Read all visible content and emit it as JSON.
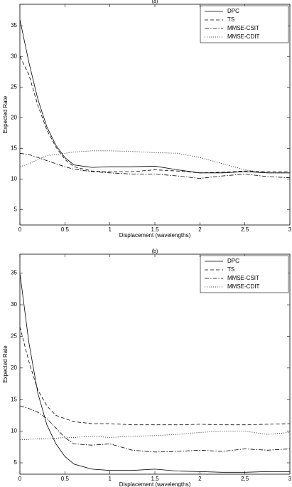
{
  "chart_data": [
    {
      "type": "line",
      "title": "(a)",
      "x_label": "Displacement (wavelengths)",
      "y_label": "Expected Rate",
      "x": [
        0,
        0.1,
        0.2,
        0.3,
        0.4,
        0.5,
        0.6,
        0.8,
        1,
        1.25,
        1.5,
        1.75,
        2,
        2.25,
        2.5,
        2.75,
        3
      ],
      "series": [
        {
          "name": "DPC",
          "color": "#000000",
          "dash": "solid",
          "values": [
            36,
            29,
            23,
            18.5,
            15.5,
            13.5,
            12.3,
            11.9,
            12,
            12,
            12.1,
            11.5,
            11,
            11,
            11.2,
            11,
            11
          ]
        },
        {
          "name": "TS",
          "color": "#000000",
          "dash": "dashed",
          "values": [
            30,
            27,
            22,
            18,
            15.2,
            13.2,
            12,
            11.3,
            11.2,
            11.2,
            11.5,
            11.3,
            11,
            11.1,
            11.3,
            11.2,
            11.2
          ]
        },
        {
          "name": "MMSE-CSIT",
          "color": "#000000",
          "dash": "dashdot",
          "values": [
            14.2,
            14,
            13.5,
            13,
            12.5,
            12,
            11.6,
            11.2,
            11,
            10.8,
            10.8,
            10.5,
            10.1,
            10.5,
            10.8,
            10.4,
            10.2
          ]
        },
        {
          "name": "MMSE-CDIT",
          "color": "#000000",
          "dash": "dotted",
          "values": [
            12,
            12.5,
            13.2,
            13.8,
            14,
            14.2,
            14.4,
            14.6,
            14.6,
            14.5,
            14.3,
            14.2,
            13.5,
            12.5,
            11.5,
            11,
            11
          ]
        }
      ],
      "xlim": [
        0,
        3
      ],
      "ylim": [
        2.5,
        38.5
      ],
      "xticks": [
        0,
        0.5,
        1,
        1.5,
        2,
        2.5,
        3
      ],
      "yticks": [
        5,
        10,
        15,
        20,
        25,
        30,
        35
      ],
      "legend": "upper right"
    },
    {
      "type": "line",
      "title": "(b)",
      "x_label": "Displacement (wavelengths)",
      "y_label": "Expected Rate",
      "x": [
        0,
        0.1,
        0.2,
        0.3,
        0.4,
        0.5,
        0.6,
        0.8,
        1,
        1.25,
        1.5,
        1.75,
        2,
        2.25,
        2.5,
        2.75,
        3
      ],
      "series": [
        {
          "name": "DPC",
          "color": "#000000",
          "dash": "solid",
          "values": [
            35,
            24,
            16,
            11,
            8,
            6,
            4.8,
            4,
            3.8,
            3.8,
            4,
            3.7,
            3.6,
            3.5,
            3.5,
            3.6,
            3.6
          ]
        },
        {
          "name": "TS",
          "color": "#000000",
          "dash": "dashed",
          "values": [
            26.5,
            21,
            16.5,
            14,
            12.5,
            12,
            11.5,
            11.2,
            11.2,
            11,
            11,
            11,
            11.1,
            11,
            11,
            11.1,
            11.2
          ]
        },
        {
          "name": "MMSE-CSIT",
          "color": "#000000",
          "dash": "dashdot",
          "values": [
            14,
            13.6,
            13,
            12,
            10.5,
            9,
            8,
            7.8,
            8,
            7,
            6.7,
            6.8,
            7,
            6.8,
            7.2,
            7,
            7.2
          ]
        },
        {
          "name": "MMSE-CDIT",
          "color": "#000000",
          "dash": "dotted",
          "values": [
            8.7,
            8.7,
            8.8,
            8.8,
            8.9,
            9,
            9,
            9.2,
            9,
            9.2,
            9.3,
            9.5,
            9.8,
            10,
            10,
            9.5,
            9.8
          ]
        }
      ],
      "xlim": [
        0,
        3
      ],
      "ylim": [
        3.2,
        38
      ],
      "xticks": [
        0,
        0.5,
        1,
        1.5,
        2,
        2.5,
        3
      ],
      "yticks": [
        5,
        10,
        15,
        20,
        25,
        30,
        35
      ],
      "legend": "upper right"
    }
  ]
}
